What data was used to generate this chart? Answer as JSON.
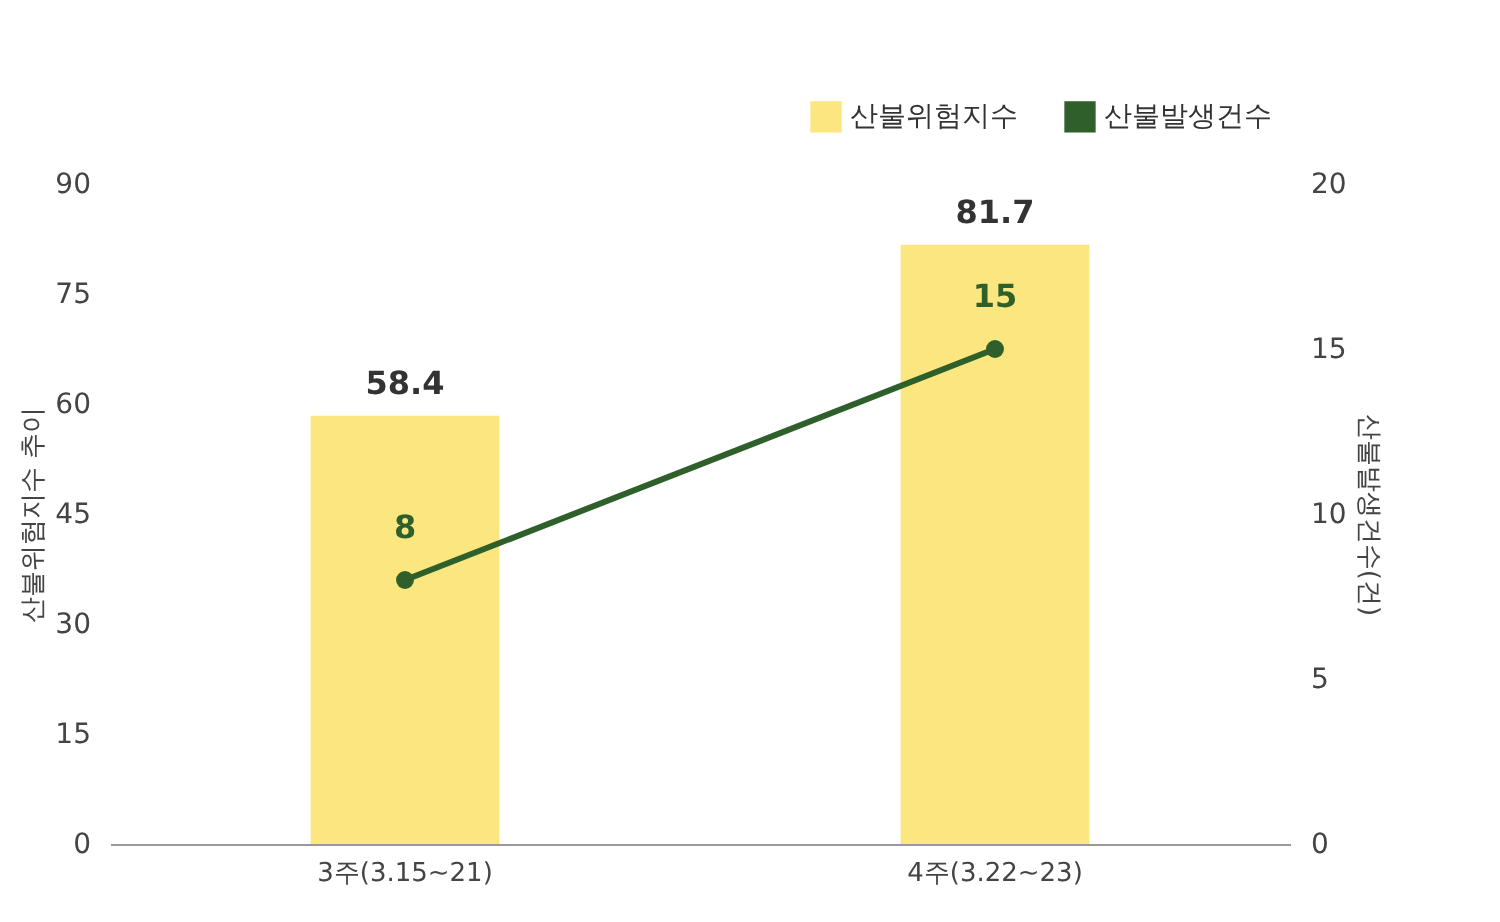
{
  "chart_data": {
    "type": "bar",
    "categories": [
      "3주(3.15~21)",
      "4주(3.22~23)"
    ],
    "series": [
      {
        "name": "산불위험지수",
        "color": "#fbe67f",
        "values": [
          58.4,
          81.7
        ]
      },
      {
        "name": "산불발생건수",
        "type": "line",
        "axis": "y2",
        "color": "#2f5f2a",
        "values": [
          8,
          15
        ]
      }
    ],
    "ylabel": "산불위험지수 추이",
    "y2label": "산불발생건수(건)",
    "ylim": [
      0,
      90
    ],
    "yticks": [
      0,
      15,
      30,
      45,
      60,
      75,
      90
    ],
    "y2lim": [
      0,
      20
    ],
    "y2ticks": [
      0,
      5,
      10,
      15,
      20
    ],
    "data_labels": true,
    "legend": "top right",
    "marker": "circle",
    "line_style": "solid",
    "grid": false
  }
}
